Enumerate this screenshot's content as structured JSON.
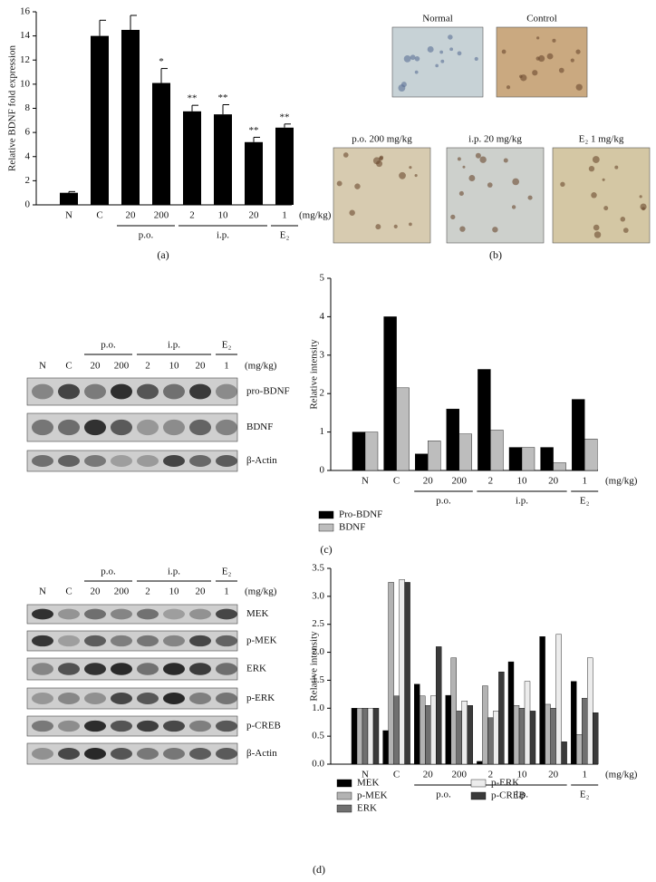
{
  "chart_data": [
    {
      "type": "bar",
      "y_label": "Relative BDNF fold expression",
      "categories": [
        "N",
        "C",
        "20",
        "200",
        "2",
        "10",
        "20",
        "1"
      ],
      "values": [
        1.0,
        14.0,
        14.5,
        10.1,
        7.75,
        7.5,
        5.2,
        6.4
      ],
      "errors": [
        0.1,
        1.3,
        1.2,
        1.2,
        0.5,
        0.8,
        0.4,
        0.3
      ],
      "value_annotations": [
        null,
        null,
        null,
        "*",
        "**",
        "**",
        "**",
        "**"
      ],
      "color": "#000000",
      "ylim": [
        0,
        16
      ],
      "yticks": [
        0,
        2,
        4,
        6,
        8,
        10,
        12,
        14,
        16
      ],
      "x_unit": "(mg/kg)",
      "groups": [
        {
          "label": "p.o.",
          "start": 2,
          "end": 3
        },
        {
          "label": "i.p.",
          "start": 4,
          "end": 6
        },
        {
          "label": "E₂",
          "start": 7,
          "end": 7
        }
      ]
    },
    {
      "type": "grouped_bar",
      "y_label": "Relative intensity",
      "categories": [
        "N",
        "C",
        "20",
        "200",
        "2",
        "10",
        "20",
        "1"
      ],
      "series": [
        {
          "name": "Pro-BDNF",
          "color": "#000000",
          "values": [
            1.0,
            4.0,
            0.43,
            1.6,
            2.63,
            0.6,
            0.6,
            1.85
          ]
        },
        {
          "name": "BDNF",
          "color": "#bdbdbd",
          "values": [
            1.0,
            2.15,
            0.77,
            0.95,
            1.05,
            0.6,
            0.2,
            0.82
          ]
        }
      ],
      "ylim": [
        0,
        5
      ],
      "yticks": [
        0,
        1,
        2,
        3,
        4,
        5
      ],
      "x_unit": "(mg/kg)",
      "groups": [
        {
          "label": "p.o.",
          "start": 2,
          "end": 3
        },
        {
          "label": "i.p.",
          "start": 4,
          "end": 6
        },
        {
          "label": "E₂",
          "start": 7,
          "end": 7
        }
      ]
    },
    {
      "type": "grouped_bar",
      "y_label": "Relative intensity",
      "categories": [
        "N",
        "C",
        "20",
        "200",
        "2",
        "10",
        "20",
        "1"
      ],
      "series": [
        {
          "name": "MEK",
          "color": "#000000",
          "values": [
            1.0,
            0.6,
            1.43,
            1.23,
            0.05,
            1.83,
            2.28,
            1.48
          ]
        },
        {
          "name": "p-MEK",
          "color": "#b3b3b3",
          "values": [
            1.0,
            3.25,
            1.22,
            1.9,
            1.4,
            1.05,
            1.07,
            0.53
          ]
        },
        {
          "name": "ERK",
          "color": "#707070",
          "values": [
            1.0,
            1.22,
            1.05,
            0.95,
            0.83,
            1.0,
            1.0,
            1.18
          ]
        },
        {
          "name": "p-ERK",
          "color": "#ececec",
          "values": [
            1.0,
            3.3,
            1.22,
            1.13,
            0.95,
            1.48,
            2.32,
            1.9
          ]
        },
        {
          "name": "p-CREB",
          "color": "#3a3a3a",
          "values": [
            1.0,
            3.25,
            2.1,
            1.05,
            1.65,
            0.95,
            0.4,
            0.92
          ]
        }
      ],
      "ylim": [
        0,
        3.5
      ],
      "yticks": [
        {
          "value": 0,
          "label": "0.0"
        },
        0.5,
        {
          "value": 1,
          "label": "1.0"
        },
        1.5,
        {
          "value": 2,
          "label": "2.0"
        },
        2.5,
        {
          "value": 3,
          "label": "3.0"
        },
        3.5
      ],
      "x_unit": "(mg/kg)",
      "groups": [
        {
          "label": "p.o.",
          "start": 2,
          "end": 3
        },
        {
          "label": "i.p.",
          "start": 4,
          "end": 6
        },
        {
          "label": "E₂",
          "start": 7,
          "end": 7
        }
      ]
    }
  ],
  "micrographs": [
    "Normal",
    "Control",
    "p.o. 200 mg/kg",
    "i.p. 20 mg/kg",
    "E₂ 1 mg/kg"
  ],
  "blots": [
    {
      "lanes": [
        "N",
        "C",
        "20",
        "200",
        "2",
        "10",
        "20",
        "1"
      ],
      "unit": "(mg/kg)",
      "groups": [
        {
          "label": "p.o.",
          "start": 2,
          "end": 3
        },
        {
          "label": "i.p.",
          "start": 4,
          "end": 6
        },
        {
          "label": "E₂",
          "start": 7,
          "end": 7
        }
      ],
      "rows": [
        "pro-BDNF",
        "BDNF",
        "β-Actin"
      ]
    },
    {
      "lanes": [
        "N",
        "C",
        "20",
        "200",
        "2",
        "10",
        "20",
        "1"
      ],
      "unit": "(mg/kg)",
      "groups": [
        {
          "label": "p.o.",
          "start": 2,
          "end": 3
        },
        {
          "label": "i.p.",
          "start": 4,
          "end": 6
        },
        {
          "label": "E₂",
          "start": 7,
          "end": 7
        }
      ],
      "rows": [
        "MEK",
        "p-MEK",
        "ERK",
        "p-ERK",
        "p-CREB",
        "β-Actin"
      ]
    }
  ],
  "panel_labels": [
    "(a)",
    "(b)",
    "(c)",
    "(d)"
  ]
}
